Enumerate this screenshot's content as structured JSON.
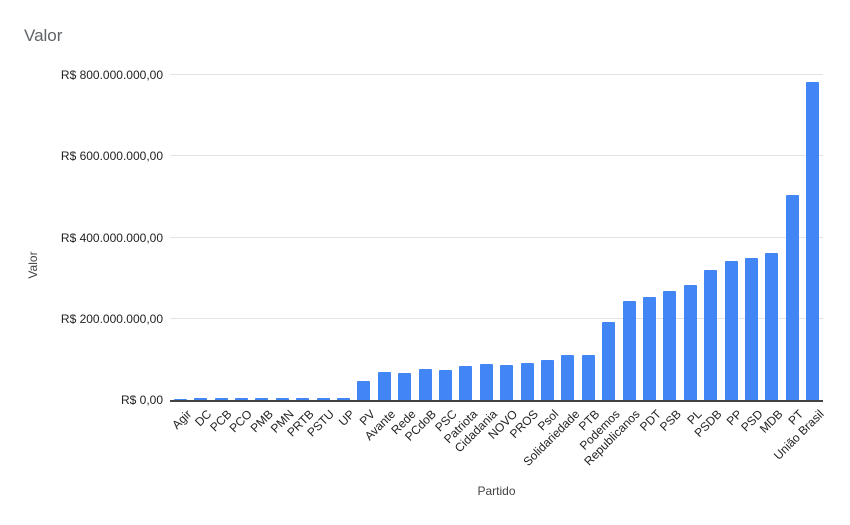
{
  "chart_data": {
    "type": "bar",
    "title": "Valor",
    "xlabel": "Partido",
    "ylabel": "Valor",
    "ylim": [
      0,
      800000000
    ],
    "grid": true,
    "legend_position": "none",
    "bar_color": "#4285f4",
    "axis_line_color": "#424242",
    "gridline_color": "#e3e3e3",
    "y_ticks": [
      {
        "value": 0,
        "label": "R$ 0,00"
      },
      {
        "value": 200000000,
        "label": "R$ 200.000.000,00"
      },
      {
        "value": 400000000,
        "label": "R$ 400.000.000,00"
      },
      {
        "value": 600000000,
        "label": "R$ 600.000.000,00"
      },
      {
        "value": 800000000,
        "label": "R$ 800.000.000,00"
      }
    ],
    "categories": [
      "Agir",
      "DC",
      "PCB",
      "PCO",
      "PMB",
      "PMN",
      "PRTB",
      "PSTU",
      "UP",
      "PV",
      "Avante",
      "Rede",
      "PCdoB",
      "PSC",
      "Patriota",
      "Cidadania",
      "NOVO",
      "PROS",
      "Psol",
      "Solidariedade",
      "PTB",
      "Podemos",
      "Republicanos",
      "PDT",
      "PSB",
      "PL",
      "PSDB",
      "PP",
      "PSD",
      "MDB",
      "PT",
      "União Brasil"
    ],
    "values": [
      3500000,
      3800000,
      4000000,
      4300000,
      4600000,
      4900000,
      5200000,
      5500000,
      5800000,
      48000000,
      70000000,
      67000000,
      77000000,
      75000000,
      84000000,
      88000000,
      87000000,
      92000000,
      98000000,
      112000000,
      110000000,
      192000000,
      243000000,
      253000000,
      268000000,
      284000000,
      319000000,
      342000000,
      350000000,
      363000000,
      505000000,
      783000000
    ]
  }
}
